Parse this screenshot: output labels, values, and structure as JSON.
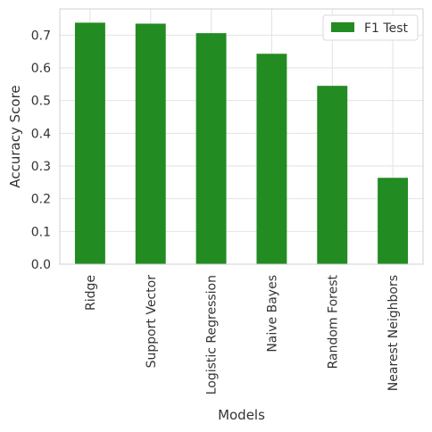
{
  "chart_data": {
    "type": "bar",
    "categories": [
      "Ridge",
      "Support Vector",
      "Logistic Regression",
      "Naive Bayes",
      "Random Forest",
      "Nearest Neighbors"
    ],
    "series": [
      {
        "name": "F1 Test",
        "values": [
          0.738,
          0.735,
          0.706,
          0.643,
          0.545,
          0.264
        ]
      }
    ],
    "xlabel": "Models",
    "ylabel": "Accuracy Score",
    "ylim": [
      0,
      0.78
    ],
    "yticks": [
      0.0,
      0.1,
      0.2,
      0.3,
      0.4,
      0.5,
      0.6,
      0.7
    ],
    "ytick_labels": [
      "0.0",
      "0.1",
      "0.2",
      "0.3",
      "0.4",
      "0.5",
      "0.6",
      "0.7"
    ],
    "grid": true,
    "legend_position": "top-right",
    "colors": {
      "bar": "#228b22",
      "grid": "#e2e2e2",
      "axes_edge": "#d0d0d0"
    }
  }
}
